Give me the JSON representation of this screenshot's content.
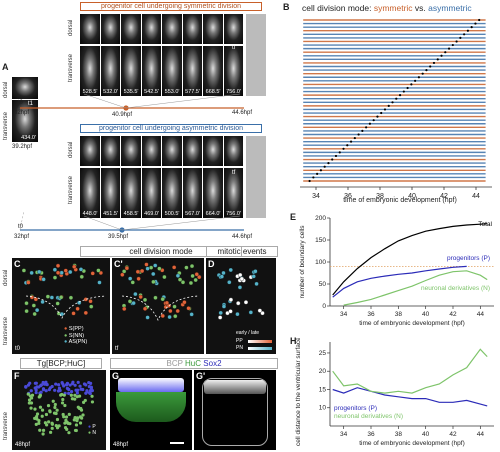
{
  "labels": {
    "A": "A",
    "B": "B",
    "C": "C",
    "C2": "C'",
    "D": "D",
    "E": "E",
    "F": "F",
    "G": "G",
    "G2": "G'",
    "H": "H"
  },
  "panelA": {
    "dorsal": "dorsal",
    "transverse": "transverse",
    "t1": "t1",
    "tf": "tf",
    "t0": "t0",
    "time_left": "434.0'",
    "age": "39.2hpf",
    "sym_title": "progenitor cell undergoing symmetric division",
    "asym_title": "progenitor cell undergoing asymmetric division",
    "sym_times": [
      "528.5'",
      "532.0'",
      "535.5'",
      "542.5'",
      "553.0'",
      "577.5'",
      "668.5'",
      "756.0'"
    ],
    "asym_times": [
      "448.0'",
      "451.5'",
      "458.5'",
      "469.0'",
      "500.5'",
      "567.0'",
      "664.0'",
      "756.0'"
    ],
    "sym_axis": [
      "32hpf",
      "40.9hpf",
      "44.6hpf"
    ],
    "asym_axis": [
      "32hpf",
      "39.5hpf",
      "44.6hpf"
    ]
  },
  "panelB": {
    "title_prefix": "cell division mode: ",
    "title_sym": "symmetric",
    "title_vs": " vs. ",
    "title_asym": "asymmetric",
    "xlabel": "time of embryonic development (hpf)",
    "ticks": [
      "34",
      "36",
      "38",
      "40",
      "42",
      "44"
    ]
  },
  "panelC": {
    "header": "cell division mode",
    "mitotic": "mitotic events",
    "dorsal": "dorsal",
    "transverse": "transverse",
    "t0": "t0",
    "tf": "tf",
    "legend": [
      "S(PP)",
      "S(NN)",
      "AS(PN)"
    ],
    "early_late": "early / late",
    "pp": "PP",
    "pn": "PN"
  },
  "panelF": {
    "title": "Tg[BCP;HuC]",
    "transverse": "transverse",
    "age": "48hpf",
    "legend": [
      "P",
      "N"
    ]
  },
  "panelG": {
    "title_bcp": "BCP",
    "title_huc": "HuC",
    "title_sox": "Sox2",
    "age": "48hpf"
  },
  "colors": {
    "sym": "#c8602a",
    "asym": "#3a6fa8",
    "total": "#000000",
    "progenitor": "#2b2bb8",
    "neuronal": "#7ec46a"
  },
  "chart_data": [
    {
      "type": "line",
      "title": "",
      "xlabel": "time of embryonic development (hpf)",
      "ylabel": "number of boundary cells",
      "xlim": [
        33,
        45
      ],
      "ylim": [
        0,
        200
      ],
      "x_ticks": [
        34,
        36,
        38,
        40,
        42,
        44
      ],
      "y_ticks": [
        0,
        50,
        100,
        150,
        200
      ],
      "annotation_dotted_y": 90,
      "series": [
        {
          "name": "Total",
          "x": [
            33.2,
            34,
            35,
            36,
            37,
            38,
            39,
            40,
            41,
            42,
            43,
            44,
            44.5
          ],
          "y": [
            25,
            55,
            85,
            110,
            130,
            148,
            160,
            170,
            176,
            181,
            184,
            186,
            187
          ]
        },
        {
          "name": "progenitors (P)",
          "x": [
            33.2,
            34,
            35,
            36,
            37,
            38,
            39,
            40,
            41,
            42,
            43
          ],
          "y": [
            20,
            40,
            55,
            63,
            68,
            72,
            75,
            80,
            84,
            88,
            90
          ]
        },
        {
          "name": "neuronal derivatives (N)",
          "x": [
            34,
            35,
            36,
            37,
            38,
            39,
            40,
            41,
            42,
            43,
            44,
            44.5
          ],
          "y": [
            2,
            8,
            15,
            25,
            35,
            45,
            58,
            70,
            78,
            80,
            70,
            60
          ]
        }
      ]
    },
    {
      "type": "line",
      "title": "",
      "xlabel": "time of embryonic development (hpf)",
      "ylabel": "cell distance to the ventricular surface (μm)",
      "xlim": [
        33,
        45
      ],
      "ylim": [
        5,
        28
      ],
      "x_ticks": [
        34,
        36,
        38,
        40,
        42,
        44
      ],
      "y_ticks": [
        10,
        15,
        20,
        25
      ],
      "series": [
        {
          "name": "progenitors (P)",
          "x": [
            33.2,
            34,
            35,
            36,
            37,
            38,
            39,
            40,
            41,
            42,
            43,
            44,
            44.5
          ],
          "y": [
            15,
            14,
            15.5,
            14.5,
            13.5,
            13,
            12.5,
            12.5,
            11.5,
            11.5,
            12,
            11,
            10.5
          ]
        },
        {
          "name": "neuronal derivatives (N)",
          "x": [
            33.2,
            34,
            35,
            36,
            37,
            38,
            39,
            40,
            41,
            42,
            43,
            44,
            44.5
          ],
          "y": [
            20,
            16,
            16.5,
            14.5,
            14,
            14.5,
            14,
            15.5,
            16.5,
            19,
            21,
            26,
            24
          ]
        }
      ]
    }
  ]
}
